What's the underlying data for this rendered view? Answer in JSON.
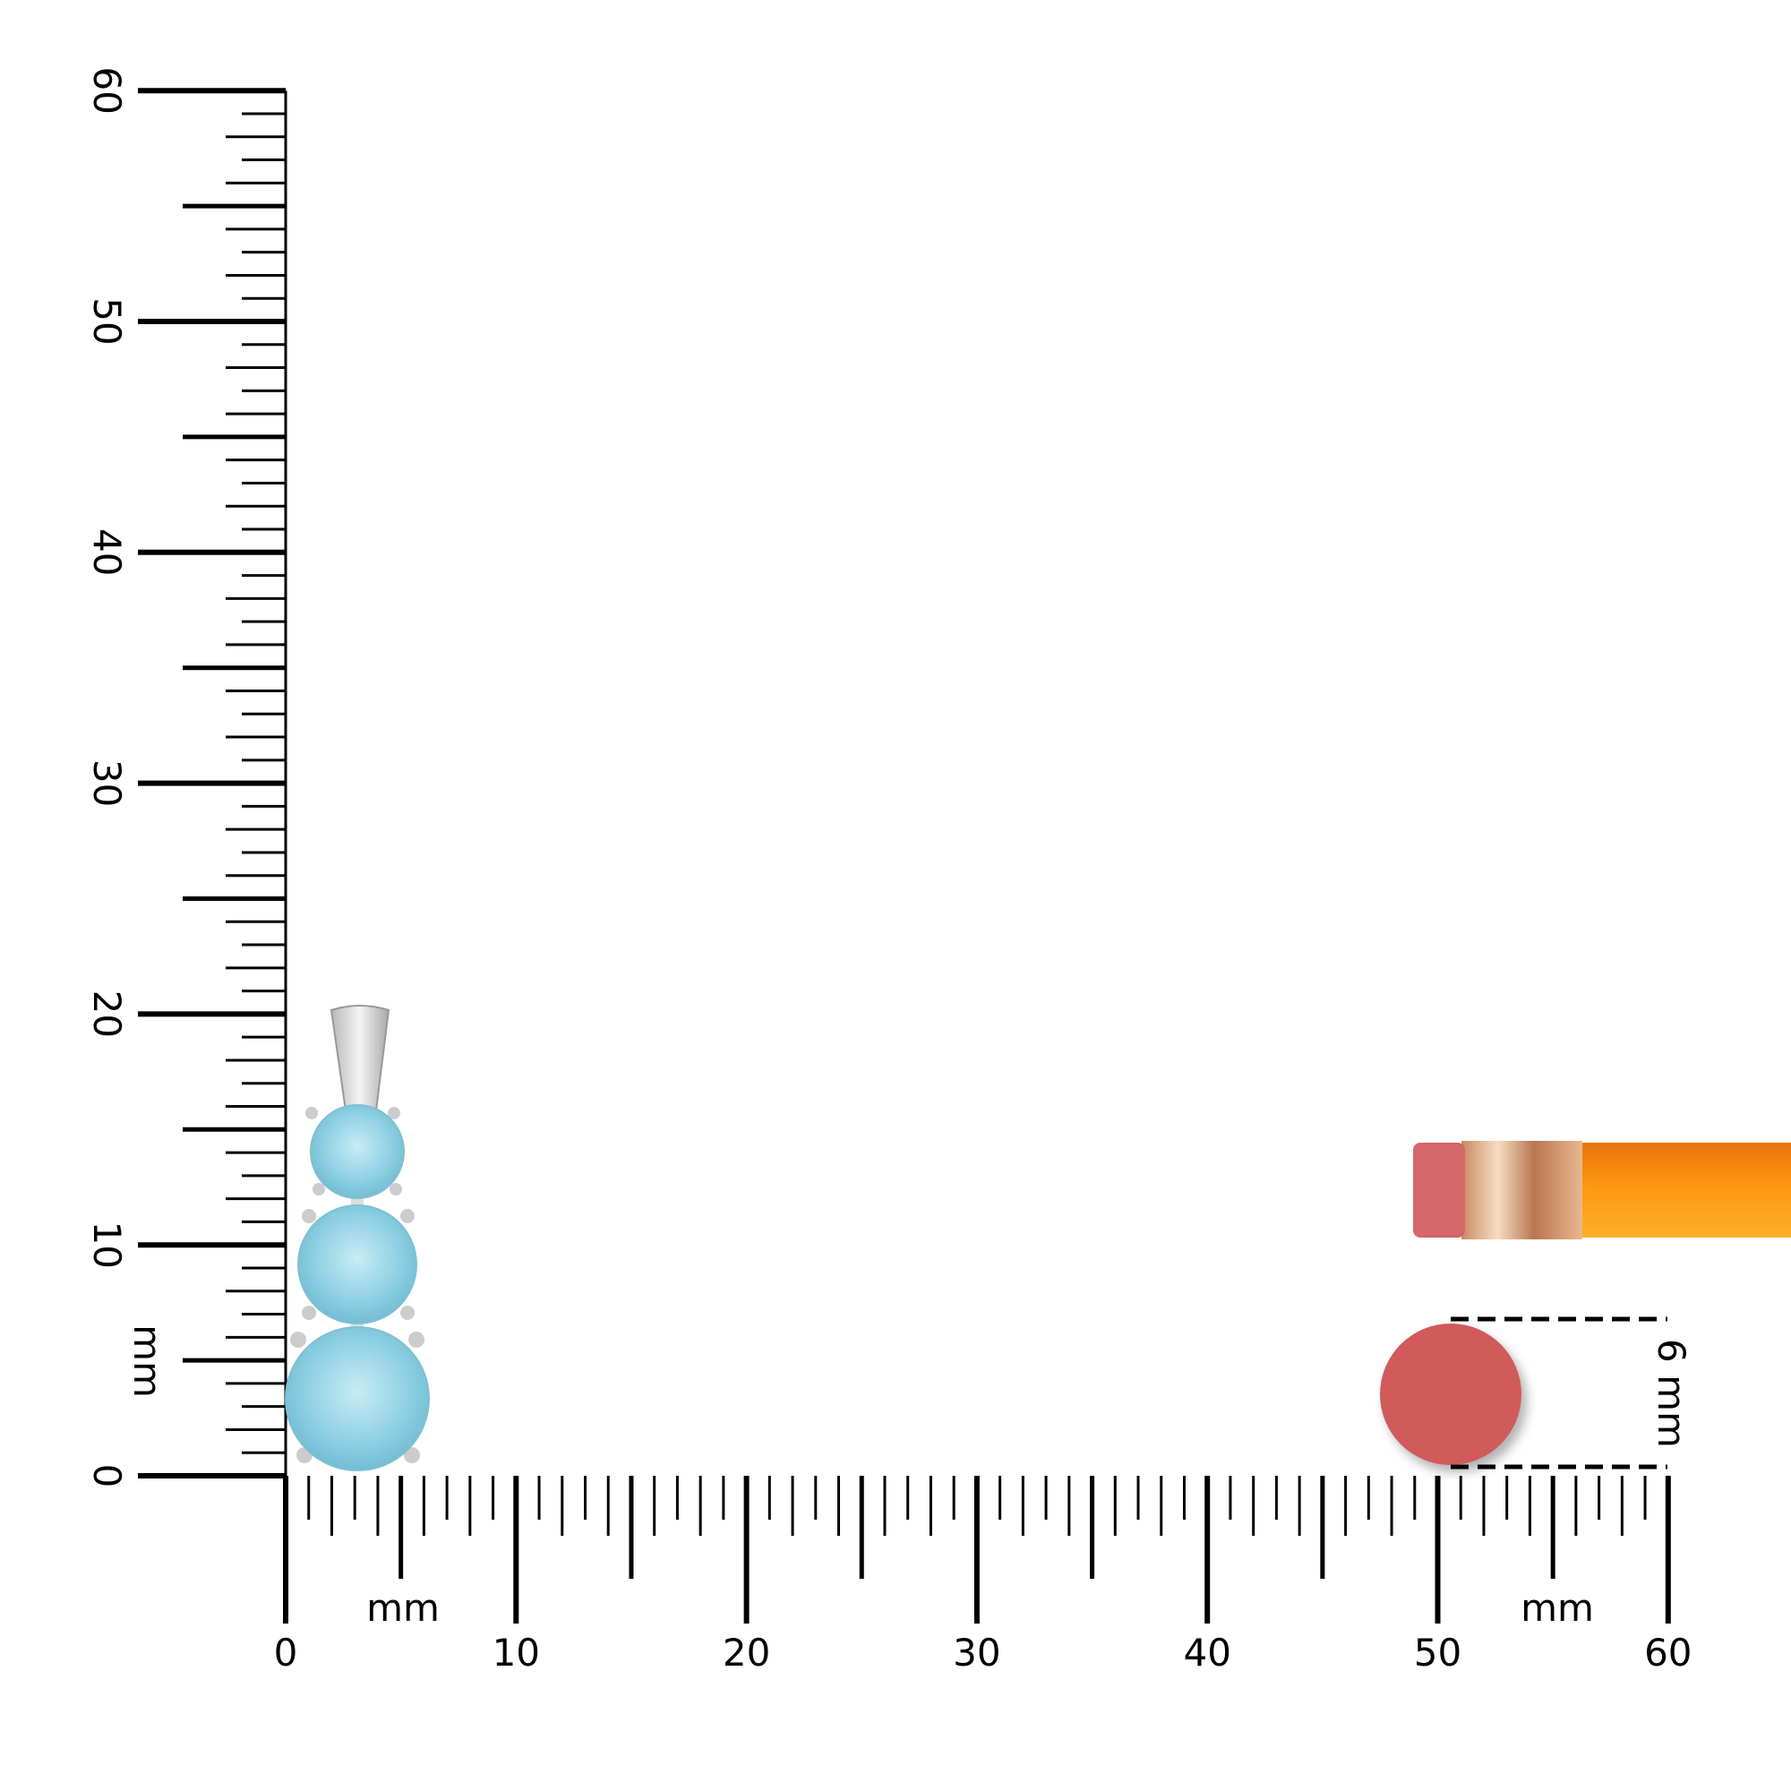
{
  "rulers": {
    "unit_label": "mm",
    "x_ticks": [
      "0",
      "10",
      "20",
      "30",
      "40",
      "50",
      "60"
    ],
    "y_ticks": [
      "0",
      "10",
      "20",
      "30",
      "40",
      "50",
      "60"
    ],
    "range_mm": [
      0,
      60
    ]
  },
  "reference": {
    "eraser_label": "6 mm",
    "eraser_diameter_mm": 6
  },
  "colors": {
    "stone": "#8fd0e3",
    "metal": "#d8d8d8",
    "eraser": "#d15a5a",
    "pencil_body": "#f5900e",
    "ferrule": "#d9a27a"
  }
}
